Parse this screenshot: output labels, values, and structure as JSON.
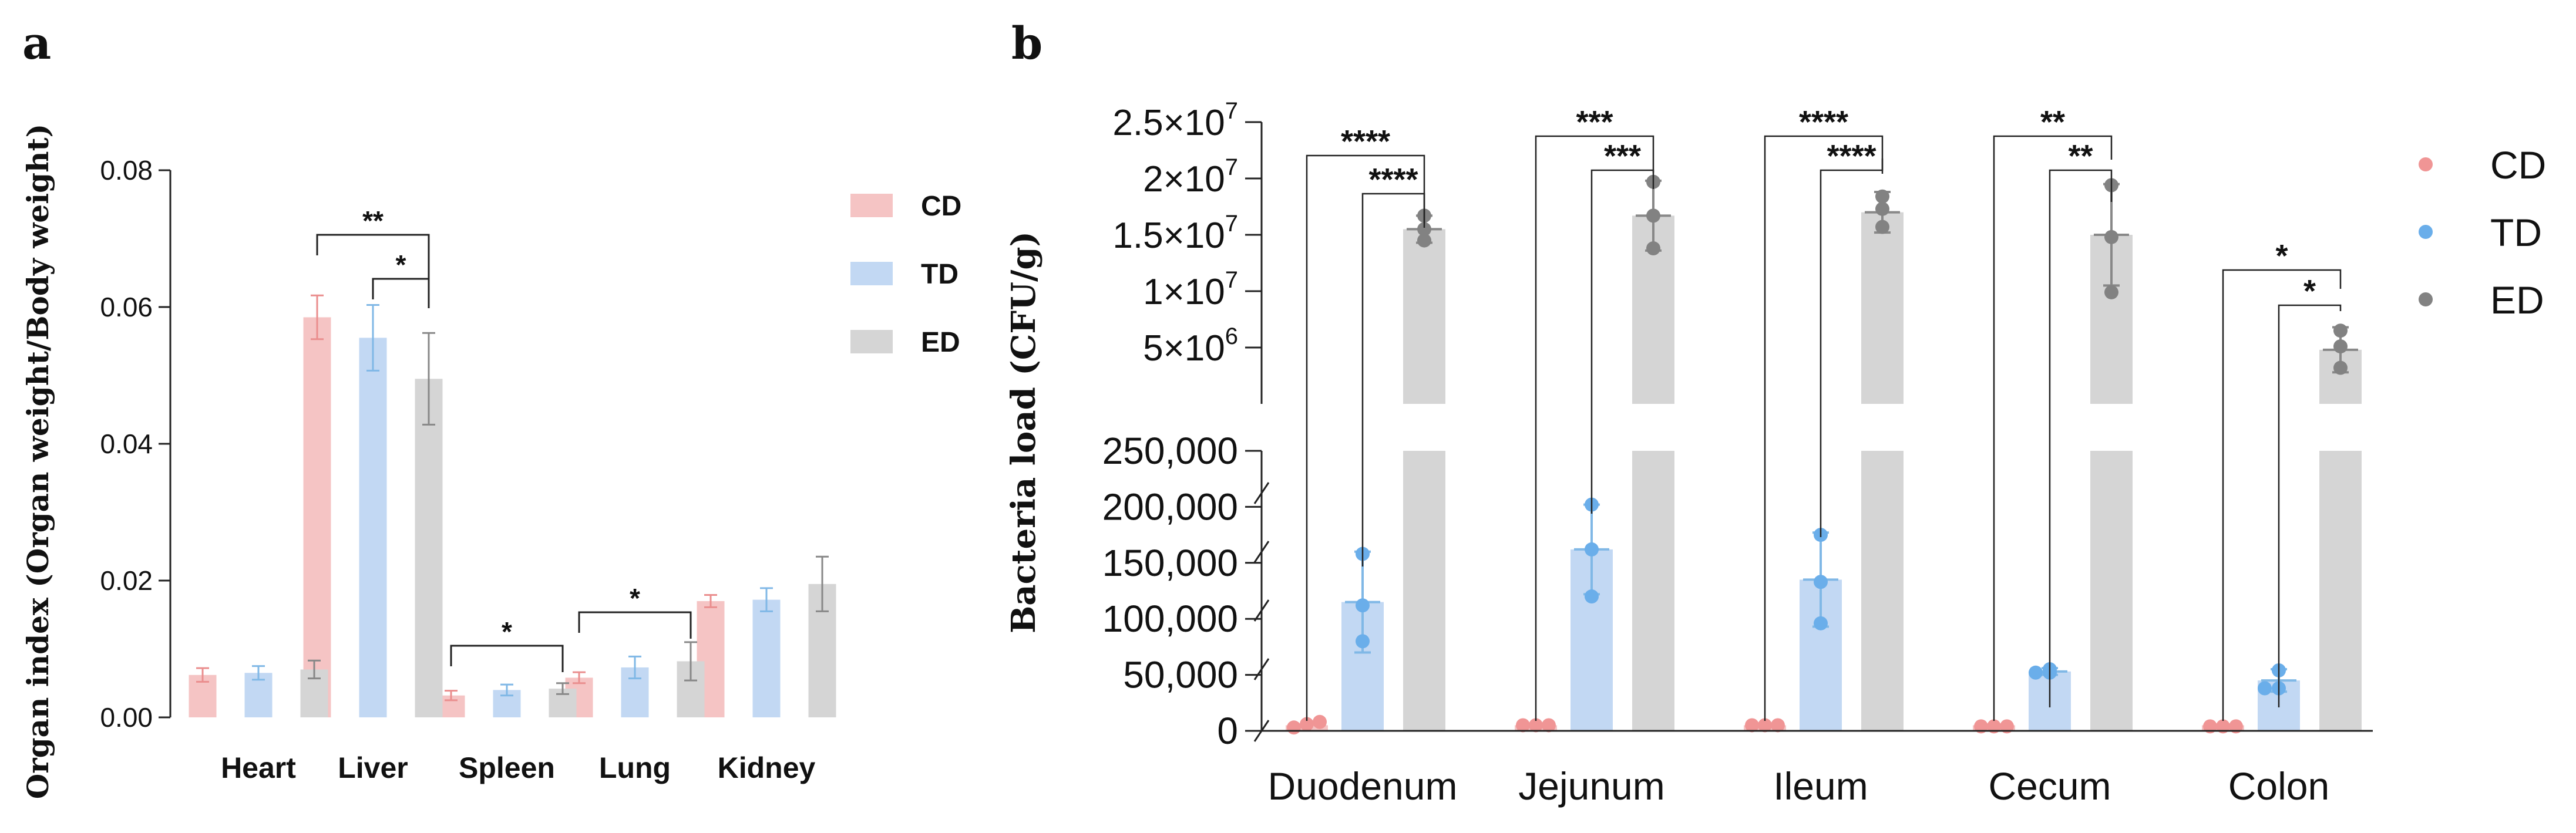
{
  "colors": {
    "CD": "#f5c4c4",
    "TD": "#c2d8f3",
    "ED": "#d5d5d5",
    "CD_err": "#ea8e8e",
    "TD_err": "#80b8e6",
    "ED_err": "#888888",
    "CD_dot": "#f09595",
    "TD_dot": "#6aaeea",
    "ED_dot": "#828282"
  },
  "chart_data": [
    {
      "panel": "a",
      "type": "bar",
      "title": "",
      "xlabel": "",
      "ylabel": "Organ index (Organ weight/Body weight)",
      "ylim": [
        0,
        0.08
      ],
      "yticks": [
        "0.00",
        "0.02",
        "0.04",
        "0.06",
        "0.08"
      ],
      "categories": [
        "Heart",
        "Liver",
        "Spleen",
        "Lung",
        "Kidney"
      ],
      "legend": {
        "placement": "right",
        "entries": [
          "CD",
          "TD",
          "ED"
        ]
      },
      "series": [
        {
          "name": "CD",
          "values": [
            0.0062,
            0.0585,
            0.0032,
            0.0058,
            0.017
          ],
          "errors": [
            0.001,
            0.0032,
            0.0007,
            0.0008,
            0.0009
          ]
        },
        {
          "name": "TD",
          "values": [
            0.0065,
            0.0555,
            0.004,
            0.0073,
            0.0172
          ],
          "errors": [
            0.001,
            0.0048,
            0.0008,
            0.0016,
            0.0017
          ]
        },
        {
          "name": "ED",
          "values": [
            0.007,
            0.0495,
            0.0042,
            0.0082,
            0.0195
          ],
          "errors": [
            0.0013,
            0.0067,
            0.0008,
            0.0028,
            0.004
          ]
        }
      ],
      "significance": [
        {
          "category": "Liver",
          "from": "CD",
          "to": "ED",
          "label": "**"
        },
        {
          "category": "Liver",
          "from": "TD",
          "to": "ED",
          "label": "*"
        },
        {
          "category": "Spleen",
          "from": "CD",
          "to": "ED",
          "label": "*"
        },
        {
          "category": "Lung",
          "from": "CD",
          "to": "ED",
          "label": "*"
        }
      ]
    },
    {
      "panel": "b",
      "type": "bar",
      "title": "",
      "xlabel": "",
      "ylabel": "Bacteria load (CFU/g)",
      "yscale": "broken axis",
      "lower_segment": {
        "ylim": [
          0,
          250000
        ],
        "yticks": [
          "0",
          "50,000",
          "100,000",
          "150,000",
          "200,000",
          "250,000"
        ]
      },
      "upper_segment": {
        "ylim": [
          0,
          25000000
        ],
        "yticks": [
          "5×10^6",
          "1×10^7",
          "1.5×10^7",
          "2×10^7",
          "2.5×10^7"
        ]
      },
      "categories": [
        "Duodenum",
        "Jejunum",
        "Ileum",
        "Cecum",
        "Colon"
      ],
      "legend": {
        "placement": "right",
        "entries": [
          "CD",
          "TD",
          "ED"
        ]
      },
      "series": [
        {
          "name": "CD",
          "values": [
            5000,
            5000,
            5000,
            5000,
            5000
          ],
          "points": [
            [
              3000,
              6000,
              8000
            ],
            [
              5000,
              5000,
              5000
            ],
            [
              5000,
              5000,
              5000
            ],
            [
              4000,
              4000,
              4000
            ],
            [
              4000,
              4000,
              4000
            ]
          ]
        },
        {
          "name": "TD",
          "values": [
            115000,
            162000,
            135000,
            53000,
            45000
          ],
          "errors": [
            45000,
            40000,
            42000,
            3000,
            10000
          ],
          "points": [
            [
              80000,
              112000,
              158000
            ],
            [
              120000,
              162000,
              202000
            ],
            [
              96000,
              133000,
              175000
            ],
            [
              52000,
              52000,
              55000
            ],
            [
              38000,
              38000,
              54000
            ]
          ]
        },
        {
          "name": "ED",
          "values": [
            15500000,
            16700000,
            17000000,
            15000000,
            4800000
          ],
          "errors": [
            1200000,
            3100000,
            1800000,
            4500000,
            2000000
          ],
          "points": [
            [
              14500000,
              15500000,
              16700000
            ],
            [
              13800000,
              16700000,
              19700000
            ],
            [
              15700000,
              17300000,
              18400000
            ],
            [
              9900000,
              14800000,
              19400000
            ],
            [
              3200000,
              5100000,
              6500000
            ]
          ]
        }
      ],
      "significance": [
        {
          "category": "Duodenum",
          "from": "CD",
          "to": "ED",
          "label": "****"
        },
        {
          "category": "Duodenum",
          "from": "TD",
          "to": "ED",
          "label": "****"
        },
        {
          "category": "Jejunum",
          "from": "CD",
          "to": "ED",
          "label": "***"
        },
        {
          "category": "Jejunum",
          "from": "TD",
          "to": "ED",
          "label": "***"
        },
        {
          "category": "Ileum",
          "from": "CD",
          "to": "ED",
          "label": "****"
        },
        {
          "category": "Ileum",
          "from": "TD",
          "to": "ED",
          "label": "****"
        },
        {
          "category": "Cecum",
          "from": "CD",
          "to": "ED",
          "label": "**"
        },
        {
          "category": "Cecum",
          "from": "TD",
          "to": "ED",
          "label": "**"
        },
        {
          "category": "Colon",
          "from": "CD",
          "to": "ED",
          "label": "*"
        },
        {
          "category": "Colon",
          "from": "TD",
          "to": "ED",
          "label": "*"
        }
      ]
    }
  ]
}
